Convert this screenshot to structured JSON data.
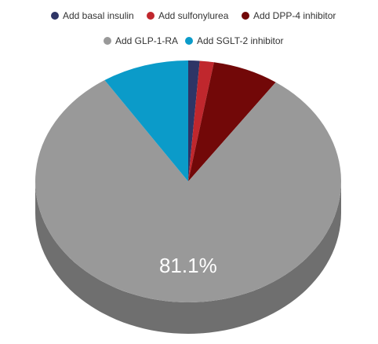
{
  "chart_data": {
    "type": "pie",
    "categories": [
      "Add basal insulin",
      "Add sulfonylurea",
      "Add DPP-4 inhibitor",
      "Add GLP-1-RA",
      "Add SGLT-2 inhibitor"
    ],
    "values": [
      1.2,
      1.5,
      7.0,
      81.1,
      9.2
    ],
    "value_labels": [
      null,
      null,
      null,
      "81.1%",
      null
    ],
    "colors": [
      "#2e3566",
      "#c0272d",
      "#720808",
      "#999999",
      "#0b9bc9"
    ],
    "legend": "top"
  }
}
